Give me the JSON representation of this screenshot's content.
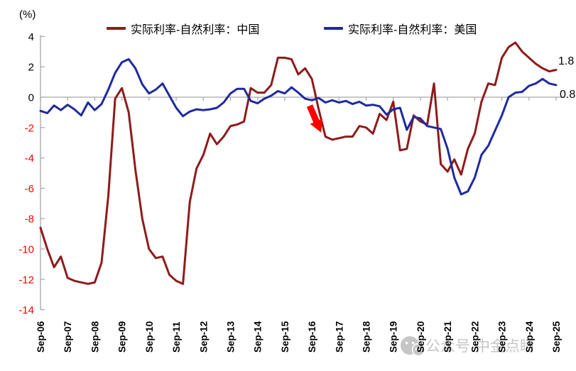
{
  "chart": {
    "percent_label": "(%)",
    "legend": [
      {
        "label": "实际利率-自然利率：中国",
        "color": "#8E1B1B"
      },
      {
        "label": "实际利率-自然利率：美国",
        "color": "#1F2A9E"
      }
    ],
    "watermark": {
      "icon": "wechat-icon",
      "text": "公众号·中金点睛",
      "color": "#b9b9b9"
    },
    "annotation_arrow": {
      "color": "#FF0000"
    }
  },
  "chart_data": {
    "type": "line",
    "title": "",
    "xlabel": "",
    "ylabel": "(%)",
    "ylim": [
      -14,
      4
    ],
    "yticks": [
      4,
      2,
      0,
      -2,
      -4,
      -6,
      -8,
      -10,
      -12,
      -14
    ],
    "ytick_positive_color": "#000000",
    "ytick_negative_color": "#FF0000",
    "grid": "zero-line-only",
    "legend_position": "top",
    "x_tick_labels": [
      "Sep-06",
      "Sep-07",
      "Sep-08",
      "Sep-09",
      "Sep-10",
      "Sep-11",
      "Sep-12",
      "Sep-13",
      "Sep-14",
      "Sep-15",
      "Sep-16",
      "Sep-17",
      "Sep-18",
      "Sep-19",
      "Sep-20",
      "Sep-21",
      "Sep-22",
      "Sep-23",
      "Sep-24",
      "Sep-25"
    ],
    "categories": [
      "Sep-06",
      "Dec-06",
      "Mar-07",
      "Jun-07",
      "Sep-07",
      "Dec-07",
      "Mar-08",
      "Jun-08",
      "Sep-08",
      "Dec-08",
      "Mar-09",
      "Jun-09",
      "Sep-09",
      "Dec-09",
      "Mar-10",
      "Jun-10",
      "Sep-10",
      "Dec-10",
      "Mar-11",
      "Jun-11",
      "Sep-11",
      "Dec-11",
      "Mar-12",
      "Jun-12",
      "Sep-12",
      "Dec-12",
      "Mar-13",
      "Jun-13",
      "Sep-13",
      "Dec-13",
      "Mar-14",
      "Jun-14",
      "Sep-14",
      "Dec-14",
      "Mar-15",
      "Jun-15",
      "Sep-15",
      "Dec-15",
      "Mar-16",
      "Jun-16",
      "Sep-16",
      "Dec-16",
      "Mar-17",
      "Jun-17",
      "Sep-17",
      "Dec-17",
      "Mar-18",
      "Jun-18",
      "Sep-18",
      "Dec-18",
      "Mar-19",
      "Jun-19",
      "Sep-19",
      "Dec-19",
      "Mar-20",
      "Jun-20",
      "Sep-20",
      "Dec-20",
      "Mar-21",
      "Jun-21",
      "Sep-21",
      "Dec-21",
      "Mar-22",
      "Jun-22",
      "Sep-22",
      "Dec-22",
      "Mar-23",
      "Jun-23",
      "Sep-23",
      "Dec-23",
      "Mar-24",
      "Jun-24",
      "Sep-24",
      "Dec-24",
      "Mar-25",
      "Jun-25",
      "Sep-25"
    ],
    "series": [
      {
        "name": "实际利率-自然利率：中国",
        "color": "#8E1B1B",
        "end_label": "1.8",
        "values": [
          -8.6,
          -10.0,
          -11.2,
          -10.5,
          -11.9,
          -12.1,
          -12.2,
          -12.3,
          -12.2,
          -10.9,
          -6.5,
          -0.1,
          0.6,
          -1.0,
          -4.8,
          -8.0,
          -10.0,
          -10.6,
          -10.5,
          -11.7,
          -12.1,
          -12.3,
          -6.9,
          -4.7,
          -3.8,
          -2.4,
          -3.1,
          -2.6,
          -1.9,
          -1.8,
          -1.6,
          0.6,
          0.3,
          0.3,
          0.8,
          2.6,
          2.6,
          2.5,
          1.5,
          1.9,
          1.2,
          -0.8,
          -2.6,
          -2.8,
          -2.7,
          -2.6,
          -2.6,
          -1.9,
          -2.0,
          -2.4,
          -1.1,
          -1.5,
          -0.3,
          -3.5,
          -3.4,
          -1.2,
          -1.6,
          -1.8,
          0.9,
          -4.4,
          -4.9,
          -4.1,
          -5.1,
          -3.4,
          -2.4,
          -0.3,
          0.9,
          0.8,
          2.6,
          3.3,
          3.6,
          3.0,
          2.6,
          2.2,
          1.9,
          1.7,
          1.8
        ]
      },
      {
        "name": "实际利率-自然利率：美国",
        "color": "#1F2A9E",
        "end_label": "0.8",
        "values": [
          -0.9,
          -1.05,
          -0.55,
          -0.85,
          -0.5,
          -0.8,
          -1.2,
          -0.35,
          -0.85,
          -0.45,
          0.5,
          1.6,
          2.3,
          2.5,
          1.9,
          0.85,
          0.25,
          0.5,
          0.9,
          0.1,
          -0.7,
          -1.25,
          -0.95,
          -0.8,
          -0.85,
          -0.8,
          -0.7,
          -0.35,
          0.25,
          0.55,
          0.55,
          -0.25,
          -0.4,
          -0.1,
          0.1,
          0.4,
          0.25,
          0.65,
          0.3,
          -0.1,
          -0.2,
          -0.05,
          -0.35,
          -0.2,
          -0.35,
          -0.25,
          -0.45,
          -0.3,
          -0.55,
          -0.5,
          -0.6,
          -1.15,
          -0.8,
          -0.7,
          -2.15,
          -1.3,
          -1.4,
          -1.9,
          -2.0,
          -2.1,
          -3.4,
          -5.3,
          -6.4,
          -6.2,
          -5.3,
          -3.8,
          -3.2,
          -2.2,
          -1.2,
          0.0,
          0.3,
          0.35,
          0.75,
          0.9,
          1.2,
          0.9,
          0.8
        ]
      }
    ],
    "annotations": [
      {
        "type": "arrow",
        "near_category": "Sep-16",
        "direction": "down-right"
      }
    ]
  }
}
